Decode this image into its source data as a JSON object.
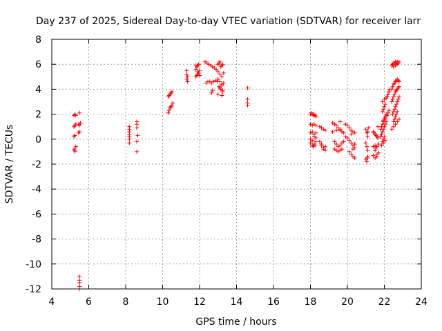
{
  "chart_data": {
    "type": "scatter",
    "title": "Day 237 of 2025, Sidereal Day-to-day VTEC variation (SDTVAR) for receiver larr",
    "xlabel": "GPS time / hours",
    "ylabel": "SDTVAR / TECUs",
    "xlim": [
      4,
      24
    ],
    "ylim": [
      -12,
      8
    ],
    "xticks": [
      4,
      6,
      8,
      10,
      12,
      14,
      16,
      18,
      20,
      22,
      24
    ],
    "yticks": [
      -12,
      -10,
      -8,
      -6,
      -4,
      -2,
      0,
      2,
      4,
      6,
      8
    ],
    "grid": true,
    "marker": "plus",
    "marker_color": "#ff0000",
    "series": [
      {
        "name": "SDTVAR",
        "x": [
          5.2,
          5.25,
          5.3,
          5.2,
          5.25,
          5.3,
          5.2,
          5.25,
          5.2,
          5.25,
          5.3,
          5.25,
          5.5,
          5.45,
          5.55,
          5.5,
          5.45,
          5.5,
          5.5,
          5.5,
          5.5,
          5.5,
          5.5,
          8.2,
          8.2,
          8.2,
          8.2,
          8.2,
          8.2,
          8.2,
          8.6,
          8.6,
          8.6,
          8.65,
          8.6,
          8.6,
          10.3,
          10.35,
          10.4,
          10.45,
          10.5,
          10.3,
          10.35,
          10.4,
          10.45,
          10.5,
          10.55,
          11.3,
          11.3,
          11.35,
          11.3,
          11.35,
          11.8,
          11.85,
          11.9,
          11.95,
          11.8,
          11.85,
          11.9,
          11.95,
          12.0,
          12.0,
          11.8,
          11.9,
          12.3,
          12.4,
          12.5,
          12.6,
          12.7,
          12.8,
          12.9,
          12.35,
          12.45,
          12.55,
          12.65,
          12.75,
          12.85,
          12.95,
          12.7,
          12.65,
          13.0,
          13.05,
          13.1,
          13.15,
          13.2,
          13.25,
          13.0,
          13.1,
          13.2,
          13.3,
          13.0,
          13.1,
          13.2,
          13.05,
          13.15,
          13.25,
          13.1,
          13.2,
          13.3,
          13.0,
          13.2,
          13.25,
          14.6,
          14.6,
          14.6,
          14.6,
          18.0,
          18.05,
          18.1,
          18.15,
          18.2,
          18.25,
          18.3,
          18.0,
          18.1,
          18.2,
          18.3,
          18.0,
          18.1,
          18.2,
          18.3,
          18.0,
          18.1,
          18.2,
          18.3,
          18.0,
          18.1,
          18.2,
          18.3,
          18.15,
          18.25,
          18.5,
          18.6,
          18.7,
          18.8,
          18.5,
          18.6,
          18.7,
          18.8,
          18.6,
          18.7,
          18.8,
          19.2,
          19.3,
          19.4,
          19.5,
          19.6,
          19.7,
          19.3,
          19.4,
          19.5,
          19.6,
          19.7,
          19.8,
          19.3,
          19.4,
          19.5,
          19.6,
          19.7,
          19.2,
          19.4,
          19.6,
          19.8,
          19.6,
          19.9,
          20.0,
          20.1,
          20.2,
          19.9,
          20.0,
          20.1,
          20.2,
          20.3,
          20.4,
          20.1,
          20.2,
          20.3,
          20.4,
          20.2,
          20.3,
          20.4,
          20.3,
          20.4,
          21.0,
          21.05,
          21.1,
          21.0,
          21.05,
          21.1,
          21.1,
          21.0,
          21.05,
          21.1,
          21.15,
          21.1,
          21.4,
          21.45,
          21.5,
          21.55,
          21.6,
          21.65,
          21.4,
          21.5,
          21.6,
          21.4,
          21.5,
          21.6,
          21.7,
          21.5,
          21.55,
          21.6,
          21.7,
          21.65,
          21.8,
          21.85,
          21.9,
          21.95,
          22.0,
          22.05,
          22.1,
          21.8,
          21.85,
          21.9,
          21.95,
          22.0,
          22.05,
          22.1,
          21.9,
          21.95,
          22.0,
          22.05,
          21.9,
          21.95,
          22.0,
          21.85,
          21.95,
          22.05,
          21.9,
          22.0,
          22.1,
          21.95,
          22.05,
          22.15,
          22.2,
          22.25,
          22.15,
          22.2,
          22.25,
          22.3,
          22.4,
          22.45,
          22.5,
          22.55,
          22.6,
          22.65,
          22.7,
          22.75,
          22.8,
          22.4,
          22.45,
          22.5,
          22.55,
          22.6,
          22.65,
          22.7,
          22.75,
          22.8,
          22.45,
          22.5,
          22.55,
          22.6,
          22.65,
          22.7,
          22.75,
          22.8,
          22.5,
          22.55,
          22.6,
          22.65,
          22.7,
          22.4,
          22.5,
          22.6,
          22.7,
          22.8,
          22.4,
          22.45,
          22.5,
          22.55,
          22.6,
          22.65,
          22.7,
          22.75,
          22.8,
          22.5,
          22.6,
          22.7
        ],
        "y": [
          1.9,
          2.0,
          1.9,
          1.0,
          1.1,
          1.2,
          0.2,
          0.3,
          -0.8,
          -1.0,
          -0.6,
          -0.9,
          2.1,
          1.2,
          1.3,
          1.1,
          0.5,
          0.6,
          -11.0,
          -11.3,
          -11.5,
          -11.8,
          -12.0,
          1.0,
          0.8,
          0.6,
          0.4,
          0.2,
          0.0,
          -0.3,
          1.4,
          1.2,
          0.9,
          0.3,
          -0.2,
          -1.0,
          3.4,
          3.5,
          3.6,
          3.7,
          3.8,
          2.1,
          2.3,
          2.5,
          2.6,
          2.7,
          2.9,
          5.5,
          5.2,
          5.0,
          4.8,
          4.6,
          5.9,
          5.8,
          5.9,
          6.0,
          5.0,
          5.1,
          5.2,
          5.3,
          5.5,
          5.1,
          5.6,
          5.4,
          6.2,
          6.1,
          6.0,
          5.9,
          5.8,
          5.7,
          5.6,
          4.5,
          4.6,
          4.6,
          4.5,
          4.6,
          4.7,
          4.6,
          3.9,
          3.7,
          6.0,
          6.1,
          6.2,
          5.8,
          5.9,
          6.0,
          5.4,
          5.2,
          5.0,
          5.3,
          4.8,
          4.6,
          4.4,
          4.2,
          4.0,
          3.8,
          4.1,
          4.3,
          4.5,
          3.6,
          3.5,
          3.9,
          4.1,
          3.2,
          2.9,
          2.7,
          2.0,
          2.1,
          2.0,
          1.9,
          2.0,
          1.9,
          1.8,
          1.2,
          1.1,
          1.2,
          1.1,
          0.5,
          0.6,
          0.4,
          0.5,
          0.0,
          -0.1,
          0.2,
          0.1,
          -0.3,
          -0.5,
          -0.4,
          -0.2,
          -0.6,
          -0.5,
          1.0,
          0.9,
          0.8,
          0.7,
          -0.2,
          -0.5,
          -0.8,
          -0.9,
          -0.4,
          -0.7,
          -0.6,
          1.3,
          1.2,
          1.1,
          0.9,
          0.7,
          0.6,
          -0.2,
          -0.4,
          -0.6,
          -0.5,
          -0.3,
          -0.2,
          -0.8,
          -0.9,
          -1.0,
          -0.9,
          -0.8,
          0.6,
          0.7,
          0.8,
          0.5,
          1.4,
          1.2,
          1.1,
          0.9,
          0.7,
          0.2,
          0.1,
          -0.1,
          -0.3,
          -0.5,
          -0.4,
          -1.0,
          -1.2,
          -1.4,
          -1.5,
          0.4,
          0.6,
          0.5,
          -0.8,
          -0.7,
          0.8,
          0.5,
          0.2,
          -0.3,
          -0.6,
          -0.9,
          -1.4,
          -1.6,
          -1.8,
          -1.5,
          0.9,
          0.6,
          0.6,
          0.5,
          0.4,
          0.3,
          0.2,
          0.1,
          -0.6,
          -0.9,
          -1.2,
          -1.3,
          -1.5,
          -1.4,
          -1.1,
          -0.5,
          -0.7,
          -0.6,
          -0.4,
          1.0,
          0.8,
          1.0,
          1.2,
          1.4,
          1.6,
          1.8,
          2.0,
          0.2,
          0.4,
          0.6,
          0.8,
          1.0,
          1.2,
          1.4,
          2.2,
          2.4,
          2.6,
          2.8,
          -0.2,
          0.0,
          0.2,
          -0.5,
          -0.3,
          -0.1,
          3.0,
          3.2,
          3.3,
          1.5,
          1.7,
          1.9,
          2.1,
          2.3,
          3.4,
          3.6,
          3.8,
          4.0,
          4.0,
          4.2,
          4.4,
          4.5,
          4.6,
          4.7,
          4.8,
          4.7,
          4.6,
          3.0,
          3.2,
          3.4,
          3.6,
          3.8,
          3.9,
          4.0,
          4.1,
          4.2,
          2.0,
          2.2,
          2.4,
          2.6,
          2.8,
          3.0,
          3.2,
          3.4,
          1.4,
          1.6,
          1.8,
          2.0,
          2.2,
          0.8,
          1.0,
          1.2,
          1.4,
          1.6,
          5.9,
          6.0,
          6.1,
          6.1,
          6.2,
          6.1,
          6.2,
          6.1,
          6.2,
          5.8,
          5.9,
          6.0
        ]
      }
    ]
  }
}
